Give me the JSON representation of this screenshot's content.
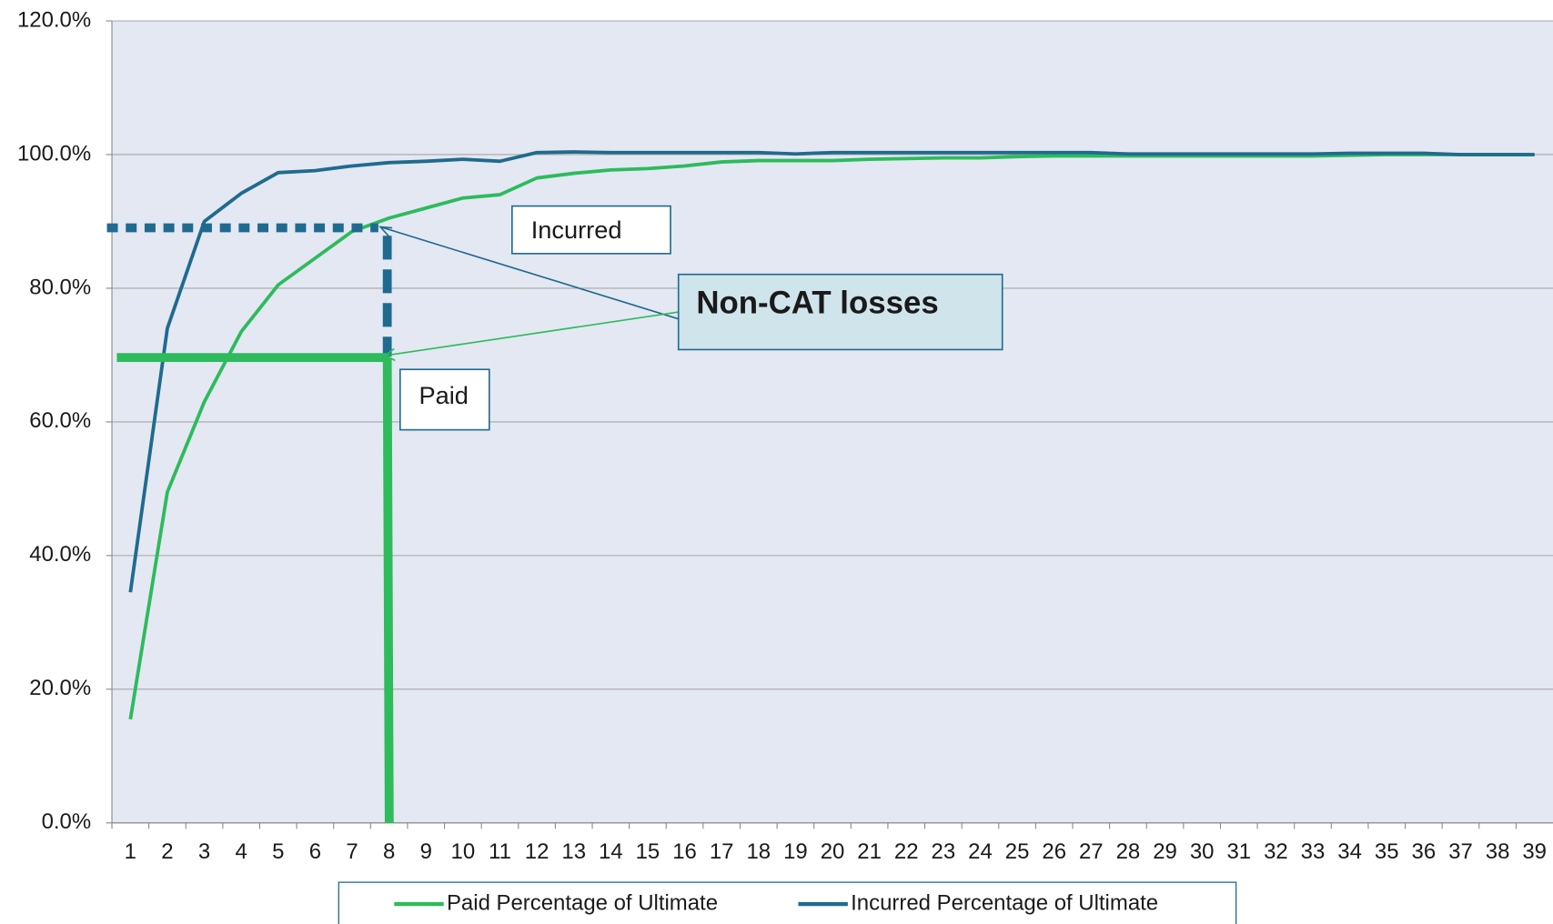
{
  "chart_data": {
    "type": "line",
    "categories": [
      "1",
      "2",
      "3",
      "4",
      "5",
      "6",
      "7",
      "8",
      "9",
      "10",
      "11",
      "12",
      "13",
      "14",
      "15",
      "16",
      "17",
      "18",
      "19",
      "20",
      "21",
      "22",
      "23",
      "24",
      "25",
      "26",
      "27",
      "28",
      "29",
      "30",
      "31",
      "32",
      "33",
      "34",
      "35",
      "36",
      "37",
      "38",
      "39"
    ],
    "series": [
      {
        "name": "Paid Percentage of Ultimate",
        "color": "#2dbb5c",
        "values": [
          15.5,
          49.5,
          63,
          73.5,
          80.5,
          84.5,
          88.5,
          90.5,
          92,
          93.5,
          94,
          96.5,
          97.2,
          97.7,
          97.9,
          98.3,
          98.9,
          99.1,
          99.1,
          99.1,
          99.3,
          99.4,
          99.5,
          99.5,
          99.7,
          99.8,
          99.8,
          99.8,
          99.8,
          99.8,
          99.8,
          99.8,
          99.8,
          99.9,
          100,
          100,
          100,
          100,
          100
        ]
      },
      {
        "name": "Incurred Percentage of Ultimate",
        "color": "#1f6b8f",
        "values": [
          34.5,
          74,
          90,
          94.2,
          97.3,
          97.6,
          98.3,
          98.8,
          99,
          99.3,
          99,
          100.3,
          100.4,
          100.3,
          100.3,
          100.3,
          100.3,
          100.3,
          100.1,
          100.3,
          100.3,
          100.3,
          100.3,
          100.3,
          100.3,
          100.3,
          100.3,
          100.1,
          100.1,
          100.1,
          100.1,
          100.1,
          100.1,
          100.2,
          100.2,
          100.2,
          100,
          100,
          100
        ]
      }
    ],
    "ylim": [
      0,
      120
    ],
    "yticks": [
      {
        "value": 0,
        "label": "0.0%"
      },
      {
        "value": 20,
        "label": "20.0%"
      },
      {
        "value": 40,
        "label": "40.0%"
      },
      {
        "value": 60,
        "label": "60.0%"
      },
      {
        "value": 80,
        "label": "80.0%"
      },
      {
        "value": 100,
        "label": "100.0%"
      },
      {
        "value": 120,
        "label": "120.0%"
      }
    ],
    "grid": true,
    "legend": "bottom",
    "annotations": [
      "Incurred",
      "Paid",
      "Non-CAT losses"
    ]
  }
}
